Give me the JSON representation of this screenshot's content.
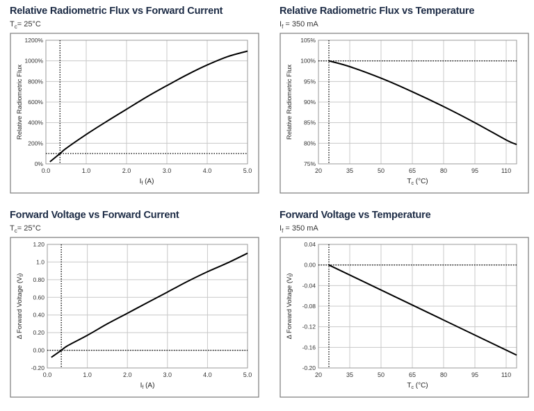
{
  "chart_data": [
    {
      "type": "line",
      "title": "Relative Radiometric Flux vs Forward Current",
      "condition": {
        "sym": "T",
        "sub": "c",
        "text": "= 25°C"
      },
      "xlabel": {
        "sym": "I",
        "sub": "f",
        "text": " (A)"
      },
      "ylabel": {
        "text": "Relative Radiometric Flux"
      },
      "xlim": [
        0,
        5
      ],
      "ylim": [
        0,
        1200
      ],
      "xticks": [
        0,
        1,
        2,
        3,
        4,
        5
      ],
      "xtick_labels": [
        "0.0",
        "1.0",
        "2.0",
        "3.0",
        "4.0",
        "5.0"
      ],
      "yticks": [
        0,
        200,
        400,
        600,
        800,
        1000,
        1200
      ],
      "ytick_labels": [
        "0%",
        "200%",
        "400%",
        "600%",
        "800%",
        "1000%",
        "1200%"
      ],
      "ref_x": 0.35,
      "ref_y": 100,
      "x": [
        0.1,
        0.35,
        0.5,
        1.0,
        1.5,
        2.0,
        2.5,
        3.0,
        3.5,
        4.0,
        4.5,
        5.0
      ],
      "y": [
        20,
        100,
        150,
        285,
        410,
        530,
        650,
        760,
        865,
        960,
        1040,
        1095
      ]
    },
    {
      "type": "line",
      "title": "Relative Radiometric Flux vs Temperature",
      "condition": {
        "sym": "I",
        "sub": "f",
        "text": " = 350 mA"
      },
      "xlabel": {
        "sym": "T",
        "sub": "c",
        "text": " (°C)"
      },
      "ylabel": {
        "text": "Relative Radiometric Flux"
      },
      "xlim": [
        20,
        115
      ],
      "ylim": [
        75,
        105
      ],
      "xticks": [
        20,
        35,
        50,
        65,
        80,
        95,
        110
      ],
      "xtick_labels": [
        "20",
        "35",
        "50",
        "65",
        "80",
        "95",
        "110"
      ],
      "yticks": [
        75,
        80,
        85,
        90,
        95,
        100,
        105
      ],
      "ytick_labels": [
        "75%",
        "80%",
        "85%",
        "90%",
        "95%",
        "100%",
        "105%"
      ],
      "ref_x": 25,
      "ref_y": 100,
      "x": [
        25,
        35,
        50,
        65,
        80,
        95,
        110,
        115
      ],
      "y": [
        100,
        98.6,
        95.8,
        92.5,
        88.9,
        85,
        80.8,
        79.7
      ]
    },
    {
      "type": "line",
      "title": "Forward Voltage vs Forward Current",
      "condition": {
        "sym": "T",
        "sub": "c",
        "text": "= 25°C"
      },
      "xlabel": {
        "sym": "I",
        "sub": "f",
        "text": " (A)"
      },
      "ylabel": {
        "text": "Δ Forward Voltage (V",
        "sub": "f",
        "tail": ")"
      },
      "xlim": [
        0,
        5
      ],
      "ylim": [
        -0.2,
        1.2
      ],
      "xticks": [
        0,
        1,
        2,
        3,
        4,
        5
      ],
      "xtick_labels": [
        "0.0",
        "1.0",
        "2.0",
        "3.0",
        "4.0",
        "5.0"
      ],
      "yticks": [
        -0.2,
        0,
        0.2,
        0.4,
        0.6,
        0.8,
        1.0,
        1.2
      ],
      "ytick_labels": [
        "-0.20",
        "0.00",
        "0.20",
        "0.40",
        "0.60",
        "0.80",
        "1.0",
        "1.20"
      ],
      "ref_x": 0.35,
      "ref_y": 0,
      "x": [
        0.1,
        0.35,
        0.5,
        1.0,
        1.5,
        2.0,
        2.5,
        3.0,
        3.5,
        4.0,
        4.5,
        5.0
      ],
      "y": [
        -0.08,
        0.0,
        0.05,
        0.17,
        0.3,
        0.42,
        0.54,
        0.66,
        0.78,
        0.89,
        0.99,
        1.1
      ]
    },
    {
      "type": "line",
      "title": "Forward Voltage vs Temperature",
      "condition": {
        "sym": "I",
        "sub": "f",
        "text": " = 350 mA"
      },
      "xlabel": {
        "sym": "T",
        "sub": "c",
        "text": " (°C)"
      },
      "ylabel": {
        "text": "Δ Forward Voltage (V",
        "sub": "f",
        "tail": ")"
      },
      "xlim": [
        20,
        115
      ],
      "ylim": [
        -0.2,
        0.04
      ],
      "xticks": [
        20,
        35,
        50,
        65,
        80,
        95,
        110
      ],
      "xtick_labels": [
        "20",
        "35",
        "50",
        "65",
        "80",
        "95",
        "110"
      ],
      "yticks": [
        -0.2,
        -0.16,
        -0.12,
        -0.08,
        -0.04,
        0,
        0.04
      ],
      "ytick_labels": [
        "-0.20",
        "-0.16",
        "-0.12",
        "-0.08",
        "-0.04",
        "0.00",
        "0.04"
      ],
      "ref_x": 25,
      "ref_y": 0,
      "x": [
        25,
        115
      ],
      "y": [
        0,
        -0.175
      ]
    }
  ]
}
